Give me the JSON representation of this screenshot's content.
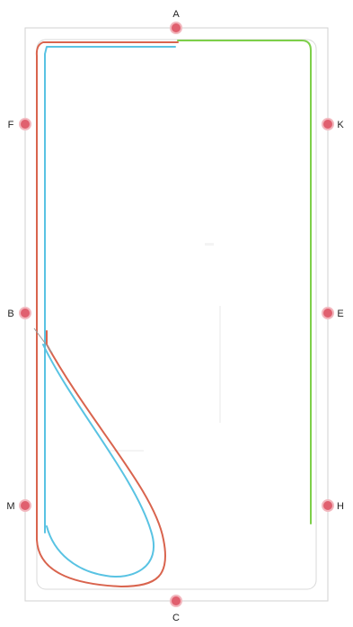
{
  "colors": {
    "outer_frame": "#d2d2d2",
    "inner_frame": "#d9d9d9",
    "marker": "#e0606f",
    "marker_ring": "#f2b7be",
    "red_path": "#d9644e",
    "blue_path": "#59c3e3",
    "green_path": "#7dcf4a"
  },
  "markers": [
    {
      "id": "A",
      "label": "A"
    },
    {
      "id": "F",
      "label": "F"
    },
    {
      "id": "K",
      "label": "K"
    },
    {
      "id": "B",
      "label": "B"
    },
    {
      "id": "E",
      "label": "E"
    },
    {
      "id": "M",
      "label": "M"
    },
    {
      "id": "H",
      "label": "H"
    },
    {
      "id": "C",
      "label": "C"
    }
  ],
  "paths": [
    {
      "id": "red-path",
      "color_key": "red_path"
    },
    {
      "id": "blue-path",
      "color_key": "blue_path"
    },
    {
      "id": "green-path",
      "color_key": "green_path"
    }
  ]
}
